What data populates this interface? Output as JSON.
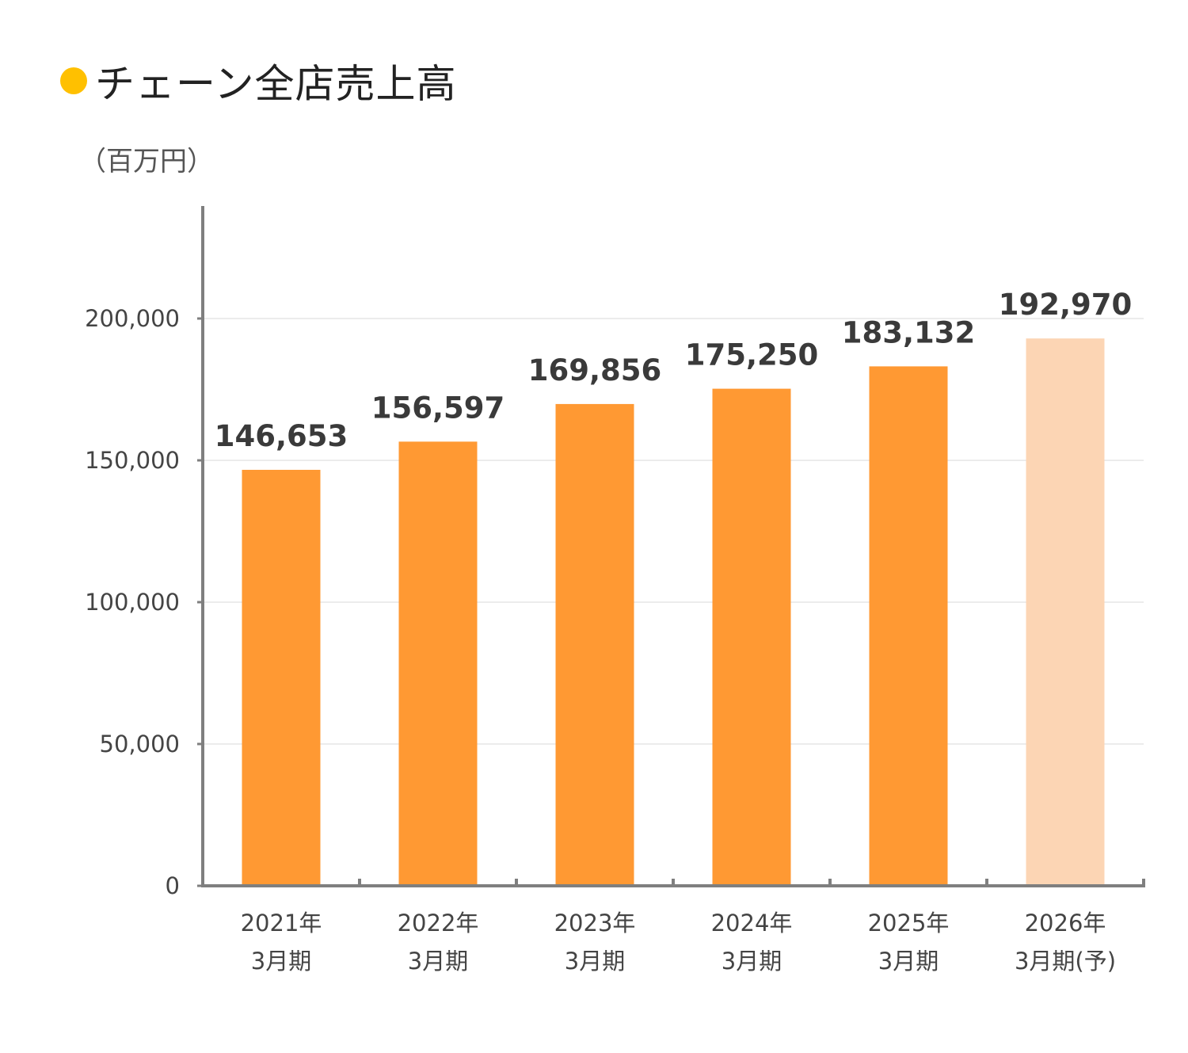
{
  "title": "チェーン全店売上高",
  "unit": "（百万円）",
  "colors": {
    "title_dot": "#ffc000",
    "bar_actual": "#ff9933",
    "bar_forecast": "#fcd5b4",
    "axis": "#7f7f7f",
    "grid": "#e6e6e6"
  },
  "chart_data": {
    "type": "bar",
    "title": "チェーン全店売上高",
    "ylabel": "（百万円）",
    "xlabel": "",
    "ylim": [
      0,
      240000
    ],
    "yticks": [
      0,
      50000,
      100000,
      150000,
      200000
    ],
    "ytick_labels": [
      "0",
      "50,000",
      "100,000",
      "150,000",
      "200,000"
    ],
    "grid": true,
    "categories": [
      "2021年\n3月期",
      "2022年\n3月期",
      "2023年\n3月期",
      "2024年\n3月期",
      "2025年\n3月期",
      "2026年\n3月期(予)"
    ],
    "values": [
      146653,
      156597,
      169856,
      175250,
      183132,
      192970
    ],
    "value_labels": [
      "146,653",
      "156,597",
      "169,856",
      "175,250",
      "183,132",
      "192,970"
    ],
    "forecast": [
      false,
      false,
      false,
      false,
      false,
      true
    ]
  }
}
